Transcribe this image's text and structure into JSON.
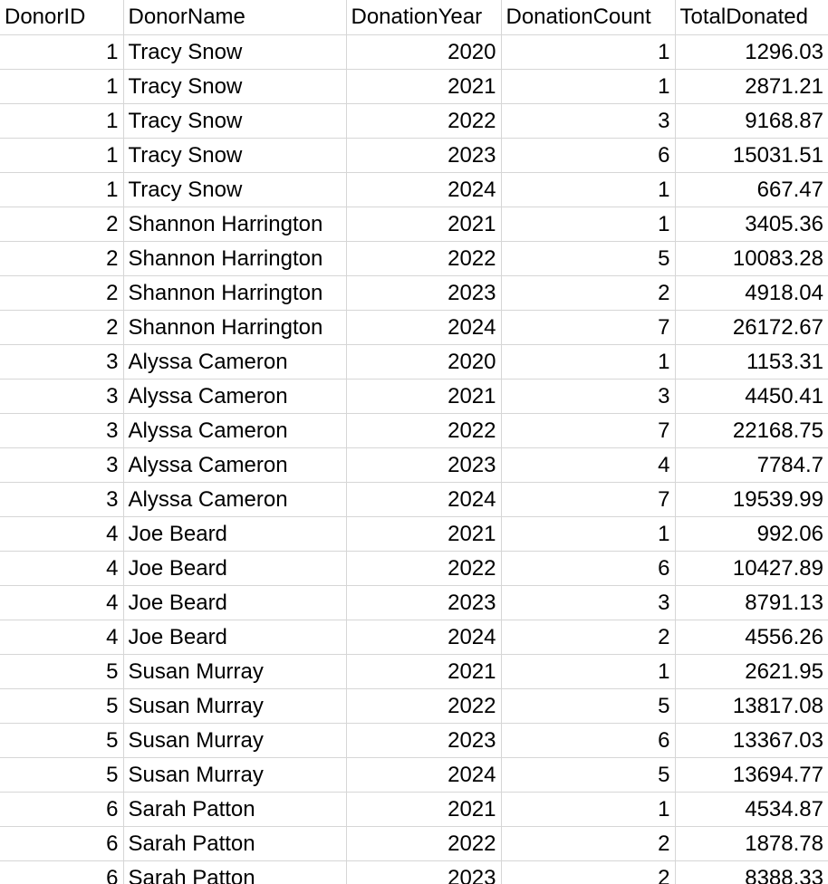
{
  "columns": [
    "DonorID",
    "DonorName",
    "DonationYear",
    "DonationCount",
    "TotalDonated"
  ],
  "rows": [
    [
      "1",
      "Tracy Snow",
      "2020",
      "1",
      "1296.03"
    ],
    [
      "1",
      "Tracy Snow",
      "2021",
      "1",
      "2871.21"
    ],
    [
      "1",
      "Tracy Snow",
      "2022",
      "3",
      "9168.87"
    ],
    [
      "1",
      "Tracy Snow",
      "2023",
      "6",
      "15031.51"
    ],
    [
      "1",
      "Tracy Snow",
      "2024",
      "1",
      "667.47"
    ],
    [
      "2",
      "Shannon Harrington",
      "2021",
      "1",
      "3405.36"
    ],
    [
      "2",
      "Shannon Harrington",
      "2022",
      "5",
      "10083.28"
    ],
    [
      "2",
      "Shannon Harrington",
      "2023",
      "2",
      "4918.04"
    ],
    [
      "2",
      "Shannon Harrington",
      "2024",
      "7",
      "26172.67"
    ],
    [
      "3",
      "Alyssa Cameron",
      "2020",
      "1",
      "1153.31"
    ],
    [
      "3",
      "Alyssa Cameron",
      "2021",
      "3",
      "4450.41"
    ],
    [
      "3",
      "Alyssa Cameron",
      "2022",
      "7",
      "22168.75"
    ],
    [
      "3",
      "Alyssa Cameron",
      "2023",
      "4",
      "7784.7"
    ],
    [
      "3",
      "Alyssa Cameron",
      "2024",
      "7",
      "19539.99"
    ],
    [
      "4",
      "Joe Beard",
      "2021",
      "1",
      "992.06"
    ],
    [
      "4",
      "Joe Beard",
      "2022",
      "6",
      "10427.89"
    ],
    [
      "4",
      "Joe Beard",
      "2023",
      "3",
      "8791.13"
    ],
    [
      "4",
      "Joe Beard",
      "2024",
      "2",
      "4556.26"
    ],
    [
      "5",
      "Susan Murray",
      "2021",
      "1",
      "2621.95"
    ],
    [
      "5",
      "Susan Murray",
      "2022",
      "5",
      "13817.08"
    ],
    [
      "5",
      "Susan Murray",
      "2023",
      "6",
      "13367.03"
    ],
    [
      "5",
      "Susan Murray",
      "2024",
      "5",
      "13694.77"
    ],
    [
      "6",
      "Sarah Patton",
      "2021",
      "1",
      "4534.87"
    ],
    [
      "6",
      "Sarah Patton",
      "2022",
      "2",
      "1878.78"
    ],
    [
      "6",
      "Sarah Patton",
      "2023",
      "2",
      "8388.33"
    ]
  ]
}
